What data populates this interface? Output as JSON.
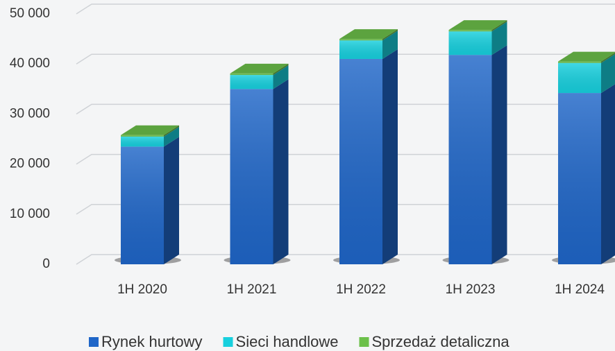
{
  "chart_data": {
    "type": "bar3d_stacked",
    "categories": [
      "1H 2020",
      "1H 2021",
      "1H 2022",
      "1H 2023",
      "1H 2024"
    ],
    "series": [
      {
        "name": "Rynek hurtowy",
        "color": "#1f66c8",
        "values": [
          23500,
          35000,
          41000,
          41800,
          34200
        ]
      },
      {
        "name": "Sieci handlowe",
        "color": "#17d0de",
        "values": [
          2000,
          2800,
          3700,
          4700,
          6000
        ]
      },
      {
        "name": "Sprzedaż detaliczna",
        "color": "#6cc04a",
        "values": [
          300,
          300,
          300,
          300,
          300
        ]
      }
    ],
    "ylim": [
      0,
      50000
    ],
    "yticks": [
      0,
      {
        "value": 10000,
        "label": "10 000"
      },
      {
        "value": 20000,
        "label": "20 000"
      },
      {
        "value": 30000,
        "label": "30 000"
      },
      {
        "value": 40000,
        "label": "40 000"
      },
      {
        "value": 50000,
        "label": "50 000"
      }
    ],
    "grid": true,
    "legend": "bottom"
  }
}
